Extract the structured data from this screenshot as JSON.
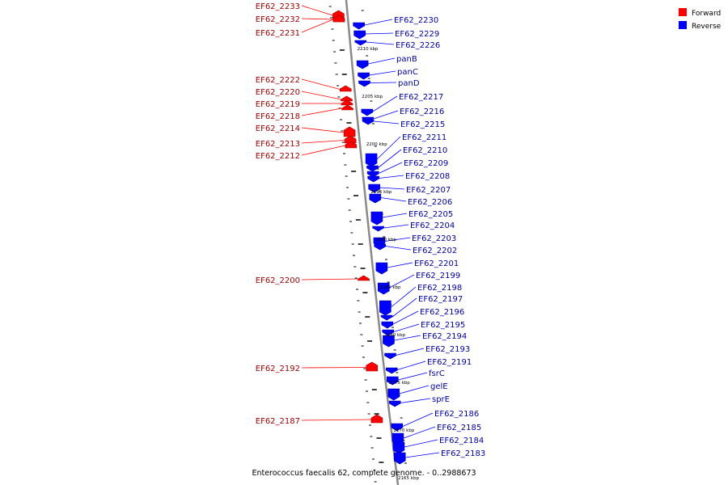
{
  "title": "Enterococcus faecalis 62, complete genome. - 0..2988673",
  "legend": [
    {
      "label": "Forward",
      "color": "#ff0000"
    },
    {
      "label": "Reverse",
      "color": "#0000ff"
    }
  ],
  "colors": {
    "forward": "#ff0000",
    "forward_edge": "#990000",
    "reverse": "#0000ff",
    "reverse_edge": "#000099",
    "backbone": "#999999",
    "tick": "#000000"
  },
  "scale_labels": [
    "2210 kbp",
    "2205 kbp",
    "2200 kbp",
    "2195 kbp",
    "2190 kbp",
    "2185 kbp",
    "2180 kbp",
    "2175 kbp",
    "2170 kbp",
    "2165 kbp"
  ],
  "forward_genes": [
    "EF62_2233",
    "EF62_2232",
    "EF62_2231",
    "EF62_2222",
    "EF62_2220",
    "EF62_2219",
    "EF62_2218",
    "EF62_2214",
    "EF62_2213",
    "EF62_2212",
    "EF62_2200",
    "EF62_2192",
    "EF62_2187"
  ],
  "reverse_genes": [
    "EF62_2230",
    "EF62_2229",
    "EF62_2226",
    "panB",
    "panC",
    "panD",
    "EF62_2217",
    "EF62_2216",
    "EF62_2215",
    "EF62_2211",
    "EF62_2210",
    "EF62_2209",
    "EF62_2208",
    "EF62_2207",
    "EF62_2206",
    "EF62_2205",
    "EF62_2204",
    "EF62_2203",
    "EF62_2202",
    "EF62_2201",
    "EF62_2199",
    "EF62_2198",
    "EF62_2197",
    "EF62_2196",
    "EF62_2195",
    "EF62_2194",
    "EF62_2193",
    "EF62_2191",
    "fsrC",
    "gelE",
    "sprE",
    "EF62_2186",
    "EF62_2185",
    "EF62_2184",
    "EF62_2183"
  ]
}
